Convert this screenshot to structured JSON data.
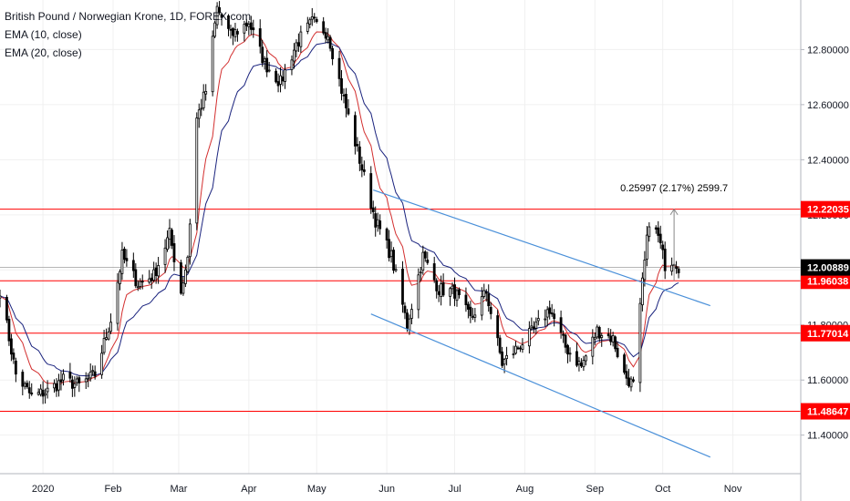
{
  "legend": {
    "title": "British Pound / Norwegian Krone, 1D, FOREX.com",
    "ema10": "EMA (10, close)",
    "ema20": "EMA (20, close)"
  },
  "colors": {
    "up": "#ffffff",
    "down": "#000000",
    "wick": "#000000",
    "ema10": "#d32f2f",
    "ema20": "#1a237e",
    "level": "#ff0000",
    "channel": "#4a90d9",
    "grid": "#f0f0f0",
    "last": "#9e9e9e"
  },
  "chart_data": {
    "type": "candlestick",
    "x_range": [
      "2019-12-13",
      "2020-12-01"
    ],
    "y_range": [
      11.26,
      12.98
    ],
    "y_ticks": [
      "11.40000",
      "11.60000",
      "11.80000",
      "12.00000",
      "12.20000",
      "12.40000",
      "12.60000",
      "12.80000"
    ],
    "x_ticks": [
      {
        "date": "2020-01-01",
        "label": "2020"
      },
      {
        "date": "2020-02-01",
        "label": "Feb"
      },
      {
        "date": "2020-03-01",
        "label": "Mar"
      },
      {
        "date": "2020-04-01",
        "label": "Apr"
      },
      {
        "date": "2020-05-01",
        "label": "May"
      },
      {
        "date": "2020-06-01",
        "label": "Jun"
      },
      {
        "date": "2020-07-01",
        "label": "Jul"
      },
      {
        "date": "2020-08-01",
        "label": "Aug"
      },
      {
        "date": "2020-09-01",
        "label": "Sep"
      },
      {
        "date": "2020-10-01",
        "label": "Oct"
      },
      {
        "date": "2020-11-01",
        "label": "Nov"
      }
    ],
    "horizontal_levels": [
      {
        "value": 12.22035,
        "label": "12.22035"
      },
      {
        "value": 11.96038,
        "label": "11.96038"
      },
      {
        "value": 11.77014,
        "label": "11.77014"
      },
      {
        "value": 11.48647,
        "label": "11.48647"
      }
    ],
    "last_price": {
      "value": 12.00889,
      "label": "12.00889"
    },
    "channel": [
      {
        "from": {
          "date": "2020-05-26",
          "value": 12.29
        },
        "to": {
          "date": "2020-10-22",
          "value": 11.87
        }
      },
      {
        "from": {
          "date": "2020-05-25",
          "value": 11.84
        },
        "to": {
          "date": "2020-10-22",
          "value": 11.32
        }
      }
    ],
    "measure": {
      "date": "2020-10-06",
      "from": 11.96,
      "to": 12.22,
      "label": "0.25997 (2.17%) 2599.7"
    },
    "price_anchors": [
      [
        "2019-12-13",
        11.93
      ],
      [
        "2019-12-20",
        11.62
      ],
      [
        "2019-12-27",
        11.54
      ],
      [
        "2020-01-03",
        11.56
      ],
      [
        "2020-01-10",
        11.6
      ],
      [
        "2020-01-17",
        11.58
      ],
      [
        "2020-01-24",
        11.62
      ],
      [
        "2020-01-31",
        11.82
      ],
      [
        "2020-02-05",
        12.05
      ],
      [
        "2020-02-12",
        11.95
      ],
      [
        "2020-02-19",
        11.98
      ],
      [
        "2020-02-26",
        12.13
      ],
      [
        "2020-03-02",
        11.92
      ],
      [
        "2020-03-05",
        12.05
      ],
      [
        "2020-03-09",
        12.55
      ],
      [
        "2020-03-13",
        12.65
      ],
      [
        "2020-03-18",
        12.95
      ],
      [
        "2020-03-24",
        12.85
      ],
      [
        "2020-04-01",
        12.9
      ],
      [
        "2020-04-08",
        12.75
      ],
      [
        "2020-04-15",
        12.68
      ],
      [
        "2020-04-22",
        12.82
      ],
      [
        "2020-04-29",
        12.9
      ],
      [
        "2020-05-06",
        12.86
      ],
      [
        "2020-05-13",
        12.62
      ],
      [
        "2020-05-20",
        12.4
      ],
      [
        "2020-05-27",
        12.18
      ],
      [
        "2020-06-03",
        12.05
      ],
      [
        "2020-06-10",
        11.8
      ],
      [
        "2020-06-17",
        12.05
      ],
      [
        "2020-06-24",
        11.93
      ],
      [
        "2020-07-01",
        11.92
      ],
      [
        "2020-07-08",
        11.82
      ],
      [
        "2020-07-15",
        11.92
      ],
      [
        "2020-07-22",
        11.66
      ],
      [
        "2020-07-29",
        11.72
      ],
      [
        "2020-08-05",
        11.78
      ],
      [
        "2020-08-12",
        11.86
      ],
      [
        "2020-08-19",
        11.72
      ],
      [
        "2020-08-26",
        11.65
      ],
      [
        "2020-09-02",
        11.78
      ],
      [
        "2020-09-09",
        11.75
      ],
      [
        "2020-09-14",
        11.62
      ],
      [
        "2020-09-18",
        11.58
      ],
      [
        "2020-09-22",
        11.95
      ],
      [
        "2020-09-25",
        12.18
      ],
      [
        "2020-09-29",
        12.12
      ],
      [
        "2020-10-02",
        12.02
      ],
      [
        "2020-10-06",
        12.04
      ],
      [
        "2020-10-08",
        12.01
      ]
    ]
  }
}
